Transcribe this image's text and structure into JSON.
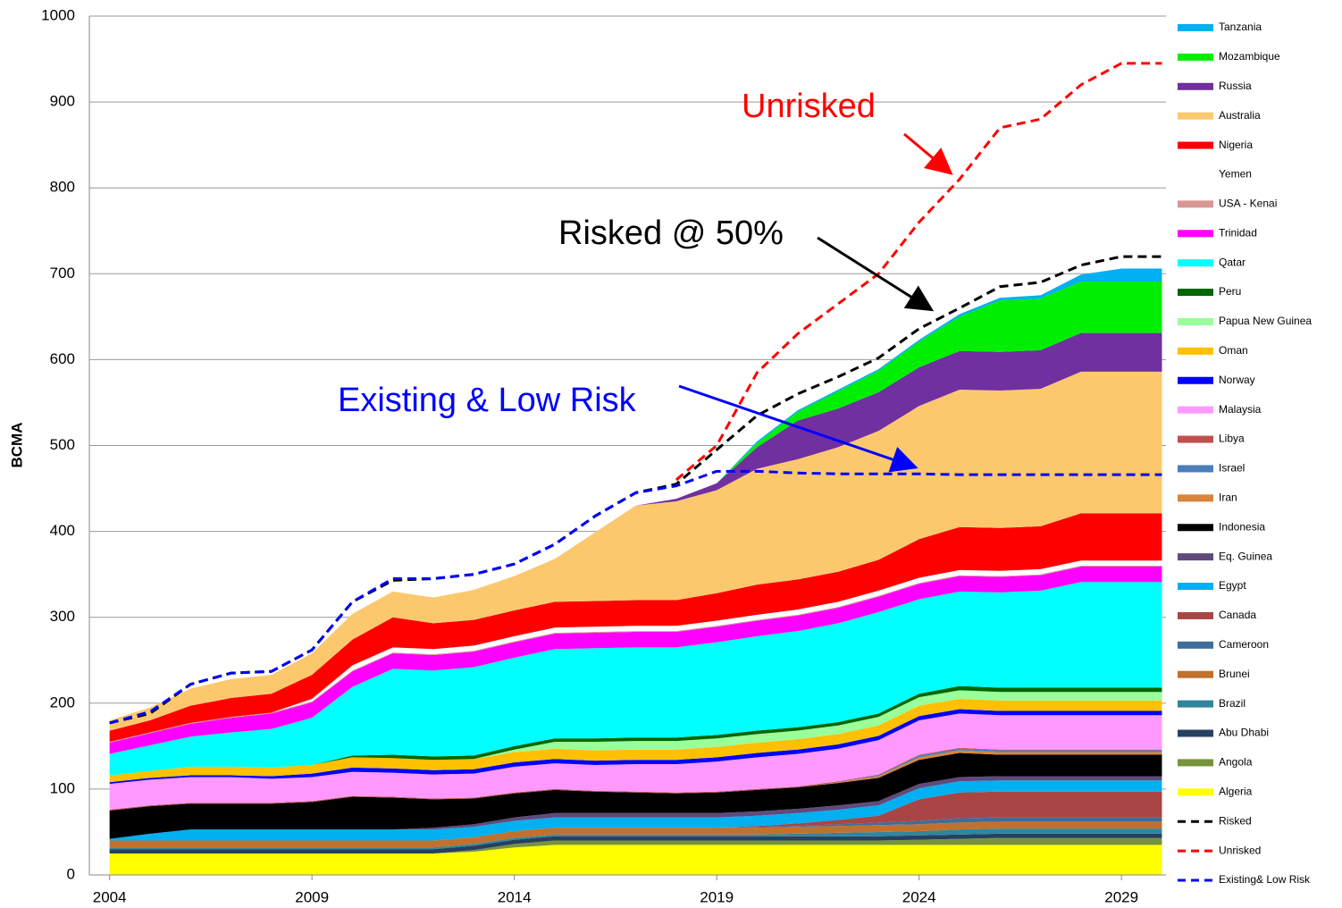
{
  "chart_data": {
    "type": "area",
    "ylabel": "BCMA",
    "x": [
      2004,
      2005,
      2006,
      2007,
      2008,
      2009,
      2010,
      2011,
      2012,
      2013,
      2014,
      2015,
      2016,
      2017,
      2018,
      2019,
      2020,
      2021,
      2022,
      2023,
      2024,
      2025,
      2026,
      2027,
      2028,
      2029,
      2030
    ],
    "xlim": [
      2003.5,
      2030.1
    ],
    "xticks": [
      2004,
      2009,
      2014,
      2019,
      2024,
      2029
    ],
    "ylim": [
      0,
      1000
    ],
    "yticks": [
      0,
      100,
      200,
      300,
      400,
      500,
      600,
      700,
      800,
      900,
      1000
    ],
    "grid": true,
    "legend": "right",
    "annotations": [
      {
        "text": "Unrisked",
        "color": "#ff0000"
      },
      {
        "text": "Risked @ 50%",
        "color": "#000000"
      },
      {
        "text": "Existing & Low Risk",
        "color": "#0000ff"
      }
    ],
    "series": [
      {
        "name": "Algeria",
        "color": "#ffff00",
        "values": [
          25,
          25,
          25,
          25,
          25,
          25,
          25,
          25,
          25,
          27,
          32,
          35,
          35,
          35,
          35,
          35,
          35,
          35,
          35,
          35,
          35,
          35,
          35,
          35,
          35,
          35,
          35
        ]
      },
      {
        "name": "Angola",
        "color": "#77933c",
        "values": [
          0,
          0,
          0,
          0,
          0,
          0,
          0,
          0,
          0,
          2,
          4,
          5,
          5,
          5,
          5,
          5,
          5,
          5,
          5,
          5,
          6,
          7,
          8,
          8,
          8,
          8,
          8
        ]
      },
      {
        "name": "Abu Dhabi",
        "color": "#254061",
        "values": [
          5,
          5,
          5,
          5,
          5,
          5,
          5,
          5,
          5,
          5,
          5,
          5,
          5,
          5,
          5,
          5,
          5,
          5,
          5,
          5,
          5,
          5,
          5,
          5,
          5,
          5,
          5
        ]
      },
      {
        "name": "Brazil",
        "color": "#31859c",
        "values": [
          2,
          2,
          2,
          2,
          2,
          2,
          2,
          2,
          2,
          2,
          2,
          2,
          2,
          2,
          2,
          2,
          2,
          3,
          4,
          5,
          5,
          6,
          6,
          6,
          6,
          6,
          6
        ]
      },
      {
        "name": "Brunei",
        "color": "#c0712e",
        "values": [
          8,
          8,
          8,
          8,
          8,
          8,
          8,
          8,
          8,
          8,
          8,
          8,
          8,
          8,
          8,
          8,
          8,
          8,
          8,
          8,
          8,
          8,
          8,
          8,
          8,
          8,
          8
        ]
      },
      {
        "name": "Cameroon",
        "color": "#3e6d9c",
        "values": [
          0,
          0,
          0,
          0,
          0,
          0,
          0,
          0,
          0,
          0,
          0,
          0,
          0,
          0,
          0,
          0,
          1,
          1,
          2,
          3,
          4,
          5,
          5,
          5,
          5,
          5,
          5
        ]
      },
      {
        "name": "Canada",
        "color": "#a94545",
        "values": [
          0,
          0,
          0,
          0,
          0,
          0,
          0,
          0,
          0,
          0,
          0,
          0,
          0,
          0,
          0,
          0,
          1,
          3,
          5,
          8,
          25,
          30,
          30,
          30,
          30,
          30,
          30
        ]
      },
      {
        "name": "Egypt",
        "color": "#00b0f0",
        "values": [
          2,
          8,
          13,
          13,
          13,
          13,
          13,
          13,
          13,
          12,
          12,
          12,
          12,
          12,
          12,
          12,
          12,
          12,
          12,
          12,
          13,
          13,
          13,
          13,
          13,
          13,
          13
        ]
      },
      {
        "name": "Eq. Guinea",
        "color": "#604a7b",
        "values": [
          0,
          0,
          0,
          0,
          0,
          0,
          0,
          0,
          2,
          3,
          4,
          5,
          5,
          5,
          5,
          5,
          5,
          5,
          5,
          5,
          5,
          5,
          5,
          5,
          5,
          5,
          5
        ]
      },
      {
        "name": "Indonesia",
        "color": "#000000",
        "values": [
          33,
          32,
          30,
          30,
          30,
          32,
          38,
          37,
          33,
          30,
          28,
          27,
          25,
          24,
          23,
          24,
          25,
          25,
          26,
          27,
          28,
          28,
          25,
          25,
          25,
          25,
          25
        ]
      },
      {
        "name": "Iran",
        "color": "#d8843a",
        "values": [
          0,
          0,
          0,
          0,
          0,
          0,
          0,
          0,
          0,
          0,
          0,
          0,
          0,
          0,
          0,
          0,
          0,
          0,
          1,
          2,
          3,
          3,
          3,
          3,
          3,
          3,
          3
        ]
      },
      {
        "name": "Israel",
        "color": "#4a7ebb",
        "values": [
          0,
          0,
          0,
          0,
          0,
          0,
          0,
          0,
          0,
          0,
          0,
          0,
          0,
          0,
          0,
          0,
          0,
          0,
          0,
          1,
          2,
          2,
          2,
          2,
          2,
          2,
          2
        ]
      },
      {
        "name": "Libya",
        "color": "#c0504d",
        "values": [
          1,
          1,
          1,
          1,
          1,
          1,
          1,
          1,
          1,
          1,
          1,
          1,
          1,
          1,
          1,
          1,
          1,
          1,
          1,
          1,
          1,
          1,
          1,
          1,
          1,
          1,
          1
        ]
      },
      {
        "name": "Malaysia",
        "color": "#ff99ff",
        "values": [
          30,
          30,
          30,
          30,
          28,
          28,
          28,
          28,
          28,
          28,
          30,
          30,
          30,
          32,
          33,
          35,
          37,
          38,
          38,
          40,
          40,
          40,
          40,
          40,
          40,
          40,
          40
        ]
      },
      {
        "name": "Norway",
        "color": "#0000ff",
        "values": [
          2,
          2,
          2,
          2,
          3,
          4,
          5,
          5,
          5,
          5,
          5,
          5,
          5,
          5,
          5,
          5,
          5,
          5,
          5,
          5,
          5,
          5,
          5,
          5,
          5,
          5,
          5
        ]
      },
      {
        "name": "Oman",
        "color": "#ffc000",
        "values": [
          8,
          8,
          10,
          10,
          10,
          10,
          12,
          12,
          12,
          12,
          12,
          12,
          12,
          12,
          12,
          12,
          12,
          12,
          12,
          12,
          12,
          12,
          12,
          12,
          12,
          12,
          12
        ]
      },
      {
        "name": "Papua New Guinea",
        "color": "#99ff99",
        "values": [
          0,
          0,
          0,
          0,
          0,
          0,
          0,
          0,
          0,
          0,
          3,
          8,
          10,
          10,
          10,
          10,
          10,
          10,
          10,
          10,
          10,
          10,
          10,
          10,
          10,
          10,
          10
        ]
      },
      {
        "name": "Peru",
        "color": "#006600",
        "values": [
          0,
          0,
          0,
          0,
          0,
          0,
          2,
          4,
          4,
          4,
          4,
          4,
          4,
          4,
          4,
          4,
          4,
          4,
          4,
          4,
          4,
          5,
          5,
          5,
          5,
          5,
          5
        ]
      },
      {
        "name": "Qatar",
        "color": "#00ffff",
        "values": [
          25,
          30,
          35,
          40,
          45,
          55,
          80,
          100,
          100,
          103,
          103,
          104,
          105,
          105,
          105,
          108,
          110,
          112,
          115,
          118,
          110,
          110,
          111,
          113,
          123,
          123,
          123
        ]
      },
      {
        "name": "Trinidad",
        "color": "#ff00ff",
        "values": [
          13,
          14,
          15,
          17,
          18,
          18,
          18,
          18,
          18,
          18,
          18,
          18,
          18,
          18,
          18,
          18,
          18,
          18,
          18,
          18,
          18,
          18,
          18,
          18,
          18,
          18,
          18
        ]
      },
      {
        "name": "USA - Kenai",
        "color": "#d99694",
        "values": [
          1,
          1,
          1,
          1,
          1,
          1,
          1,
          1,
          1,
          1,
          1,
          1,
          1,
          1,
          1,
          1,
          1,
          1,
          1,
          1,
          1,
          1,
          1,
          1,
          1,
          1,
          1
        ]
      },
      {
        "name": "Yemen",
        "color": "#ffffff",
        "values": [
          0,
          0,
          0,
          0,
          0,
          3,
          6,
          6,
          6,
          6,
          6,
          6,
          6,
          6,
          6,
          6,
          6,
          6,
          6,
          6,
          6,
          6,
          6,
          6,
          6,
          6,
          6
        ]
      },
      {
        "name": "Nigeria",
        "color": "#ff0000",
        "values": [
          13,
          14,
          20,
          22,
          22,
          28,
          30,
          35,
          30,
          30,
          30,
          30,
          30,
          30,
          30,
          32,
          35,
          35,
          35,
          36,
          45,
          50,
          50,
          50,
          55,
          55,
          55
        ]
      },
      {
        "name": "Australia",
        "color": "#fcc86e",
        "values": [
          12,
          15,
          20,
          22,
          22,
          25,
          30,
          30,
          30,
          35,
          40,
          50,
          80,
          110,
          115,
          120,
          135,
          140,
          145,
          150,
          155,
          160,
          160,
          160,
          165,
          165,
          165
        ]
      },
      {
        "name": "Russia",
        "color": "#7030a0",
        "values": [
          0,
          0,
          0,
          0,
          0,
          0,
          0,
          0,
          0,
          0,
          0,
          0,
          0,
          0,
          3,
          8,
          25,
          45,
          45,
          45,
          45,
          45,
          45,
          45,
          45,
          45,
          45
        ]
      },
      {
        "name": "Mozambique",
        "color": "#00ee00",
        "values": [
          0,
          0,
          0,
          0,
          0,
          0,
          0,
          0,
          0,
          0,
          0,
          0,
          0,
          0,
          0,
          0,
          5,
          10,
          20,
          25,
          30,
          40,
          60,
          60,
          60,
          60,
          60
        ]
      },
      {
        "name": "Tanzania",
        "color": "#00b0f0",
        "values": [
          0,
          0,
          0,
          0,
          0,
          0,
          0,
          0,
          0,
          0,
          0,
          0,
          0,
          0,
          0,
          0,
          2,
          2,
          2,
          2,
          2,
          3,
          3,
          4,
          8,
          15,
          15
        ]
      },
      {
        "name": "Risked",
        "color": "#000000",
        "style": "dashed",
        "values": [
          177,
          188,
          222,
          235,
          237,
          262,
          318,
          343,
          345,
          350,
          362,
          385,
          418,
          445,
          455,
          495,
          535,
          560,
          580,
          602,
          636,
          660,
          685,
          690,
          710,
          720,
          720
        ]
      },
      {
        "name": "Unrisked",
        "color": "#ff0000",
        "style": "dashed",
        "values": [
          null,
          null,
          null,
          null,
          null,
          null,
          null,
          null,
          null,
          null,
          null,
          null,
          null,
          null,
          460,
          500,
          585,
          630,
          665,
          700,
          760,
          810,
          870,
          880,
          920,
          945,
          945
        ]
      },
      {
        "name": "Existing& Low Risk",
        "color": "#0000ff",
        "style": "dashed",
        "values": [
          177,
          190,
          222,
          235,
          237,
          262,
          318,
          345,
          345,
          350,
          362,
          385,
          418,
          445,
          453,
          470,
          470,
          468,
          467,
          467,
          467,
          466,
          466,
          466,
          466,
          466,
          466
        ]
      }
    ]
  }
}
